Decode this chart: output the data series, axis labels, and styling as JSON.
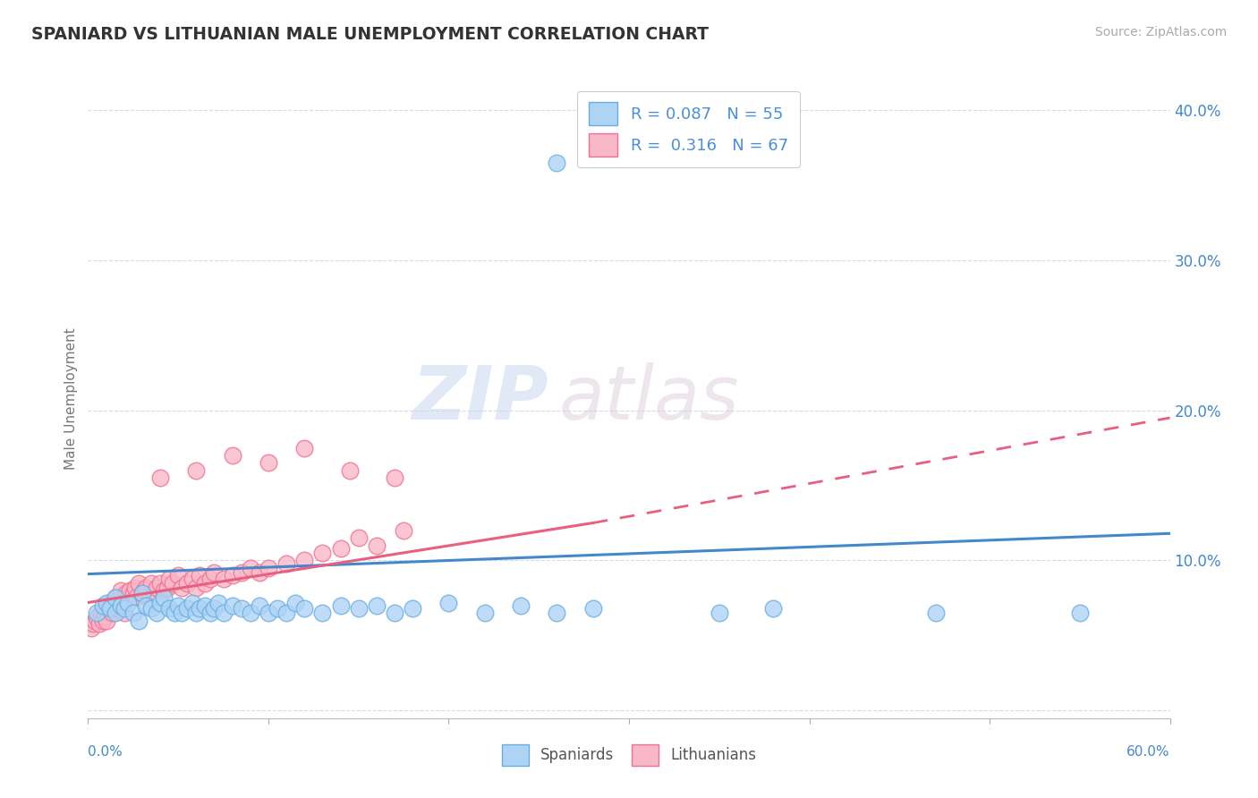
{
  "title": "SPANIARD VS LITHUANIAN MALE UNEMPLOYMENT CORRELATION CHART",
  "source": "Source: ZipAtlas.com",
  "ylabel": "Male Unemployment",
  "xlim": [
    0.0,
    0.6
  ],
  "ylim": [
    -0.005,
    0.42
  ],
  "spaniards_R": 0.087,
  "spaniards_N": 55,
  "lithuanians_R": 0.316,
  "lithuanians_N": 67,
  "spaniards_color": "#aed4f5",
  "lithuanians_color": "#f9b8c8",
  "spaniards_edge_color": "#6aaee0",
  "lithuanians_edge_color": "#f07090",
  "spaniards_line_color": "#4488cc",
  "lithuanians_line_color": "#e86080",
  "legend_text_color": "#4a90d9",
  "background_color": "#ffffff",
  "watermark_zip": "ZIP",
  "watermark_atlas": "atlas",
  "grid_color": "#d0d8e8",
  "spaniards_x": [
    0.005,
    0.008,
    0.01,
    0.012,
    0.015,
    0.015,
    0.018,
    0.02,
    0.022,
    0.025,
    0.028,
    0.03,
    0.032,
    0.035,
    0.038,
    0.04,
    0.042,
    0.045,
    0.048,
    0.05,
    0.052,
    0.055,
    0.058,
    0.06,
    0.062,
    0.065,
    0.068,
    0.07,
    0.072,
    0.075,
    0.08,
    0.085,
    0.09,
    0.095,
    0.1,
    0.105,
    0.11,
    0.115,
    0.12,
    0.13,
    0.14,
    0.15,
    0.16,
    0.17,
    0.18,
    0.2,
    0.22,
    0.24,
    0.26,
    0.28,
    0.35,
    0.38,
    0.47,
    0.55,
    0.26
  ],
  "spaniards_y": [
    0.065,
    0.07,
    0.072,
    0.068,
    0.075,
    0.065,
    0.07,
    0.068,
    0.072,
    0.065,
    0.06,
    0.078,
    0.07,
    0.068,
    0.065,
    0.072,
    0.075,
    0.068,
    0.065,
    0.07,
    0.065,
    0.068,
    0.072,
    0.065,
    0.068,
    0.07,
    0.065,
    0.068,
    0.072,
    0.065,
    0.07,
    0.068,
    0.065,
    0.07,
    0.065,
    0.068,
    0.065,
    0.072,
    0.068,
    0.065,
    0.07,
    0.068,
    0.07,
    0.065,
    0.068,
    0.072,
    0.065,
    0.07,
    0.065,
    0.068,
    0.065,
    0.068,
    0.065,
    0.065,
    0.365
  ],
  "lithuanians_x": [
    0.002,
    0.003,
    0.004,
    0.005,
    0.006,
    0.007,
    0.008,
    0.009,
    0.01,
    0.01,
    0.012,
    0.013,
    0.014,
    0.015,
    0.016,
    0.017,
    0.018,
    0.019,
    0.02,
    0.021,
    0.022,
    0.023,
    0.025,
    0.026,
    0.027,
    0.028,
    0.03,
    0.031,
    0.032,
    0.034,
    0.035,
    0.037,
    0.038,
    0.04,
    0.042,
    0.044,
    0.045,
    0.047,
    0.05,
    0.052,
    0.055,
    0.058,
    0.06,
    0.062,
    0.065,
    0.068,
    0.07,
    0.075,
    0.08,
    0.085,
    0.09,
    0.095,
    0.1,
    0.11,
    0.12,
    0.13,
    0.14,
    0.15,
    0.16,
    0.175,
    0.04,
    0.06,
    0.08,
    0.1,
    0.12,
    0.145,
    0.17
  ],
  "lithuanians_y": [
    0.055,
    0.058,
    0.06,
    0.062,
    0.058,
    0.065,
    0.06,
    0.063,
    0.068,
    0.06,
    0.072,
    0.065,
    0.068,
    0.075,
    0.07,
    0.068,
    0.08,
    0.072,
    0.065,
    0.078,
    0.075,
    0.08,
    0.078,
    0.082,
    0.076,
    0.085,
    0.078,
    0.08,
    0.082,
    0.075,
    0.085,
    0.078,
    0.082,
    0.085,
    0.08,
    0.082,
    0.088,
    0.085,
    0.09,
    0.082,
    0.085,
    0.088,
    0.082,
    0.09,
    0.085,
    0.088,
    0.092,
    0.088,
    0.09,
    0.092,
    0.095,
    0.092,
    0.095,
    0.098,
    0.1,
    0.105,
    0.108,
    0.115,
    0.11,
    0.12,
    0.155,
    0.16,
    0.17,
    0.165,
    0.175,
    0.16,
    0.155
  ],
  "sp_trend": [
    0.091,
    0.118
  ],
  "lt_trend_solid": [
    0.072,
    0.125
  ],
  "lt_trend_dashed": [
    0.125,
    0.195
  ]
}
